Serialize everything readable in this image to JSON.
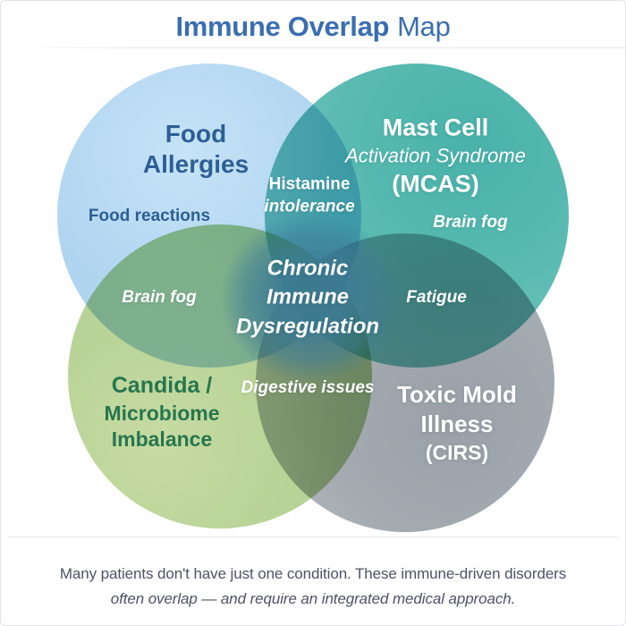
{
  "title": {
    "bold_part": "Immune Overlap",
    "regular_part": "Map"
  },
  "venn": {
    "food": {
      "line1": "Food",
      "line2": "Allergies",
      "symptom": "Food reactions"
    },
    "mcas": {
      "line1": "Mast Cell",
      "line2": "Activation Syndrome",
      "line3": "(MCAS)",
      "symptom": "Brain fog"
    },
    "candida": {
      "line1": "Candida /",
      "line2": "Microbiome",
      "line3": "Imbalance"
    },
    "mold": {
      "line1": "Toxic Mold",
      "line2": "Illness",
      "line3": "(CIRS)"
    },
    "overlap_histamine": {
      "line1": "Histamine",
      "line2": "intolerance"
    },
    "overlap_brain_fog": "Brain fog",
    "overlap_fatigue": "Fatigue",
    "overlap_digestive": "Digestive issues",
    "center": {
      "line1": "Chronic",
      "line2": "Immune",
      "line3": "Dysregulation"
    }
  },
  "caption": {
    "line1": "Many patients don't have just one condition. These immune-driven disorders",
    "line2": "often overlap — and require an integrated medical approach."
  },
  "colors": {
    "title_blue": "#3b6eb1",
    "food_circle": "#aed4f0",
    "mcas_circle": "#4db3ab",
    "candida_circle": "#b4d194",
    "mold_circle": "#9aa1a8",
    "food_text": "#2d5f94",
    "candida_text": "#27764f",
    "overlap_text": "#ffffff",
    "center_overlap": "#3e7c96",
    "caption_text": "#4c5365"
  }
}
